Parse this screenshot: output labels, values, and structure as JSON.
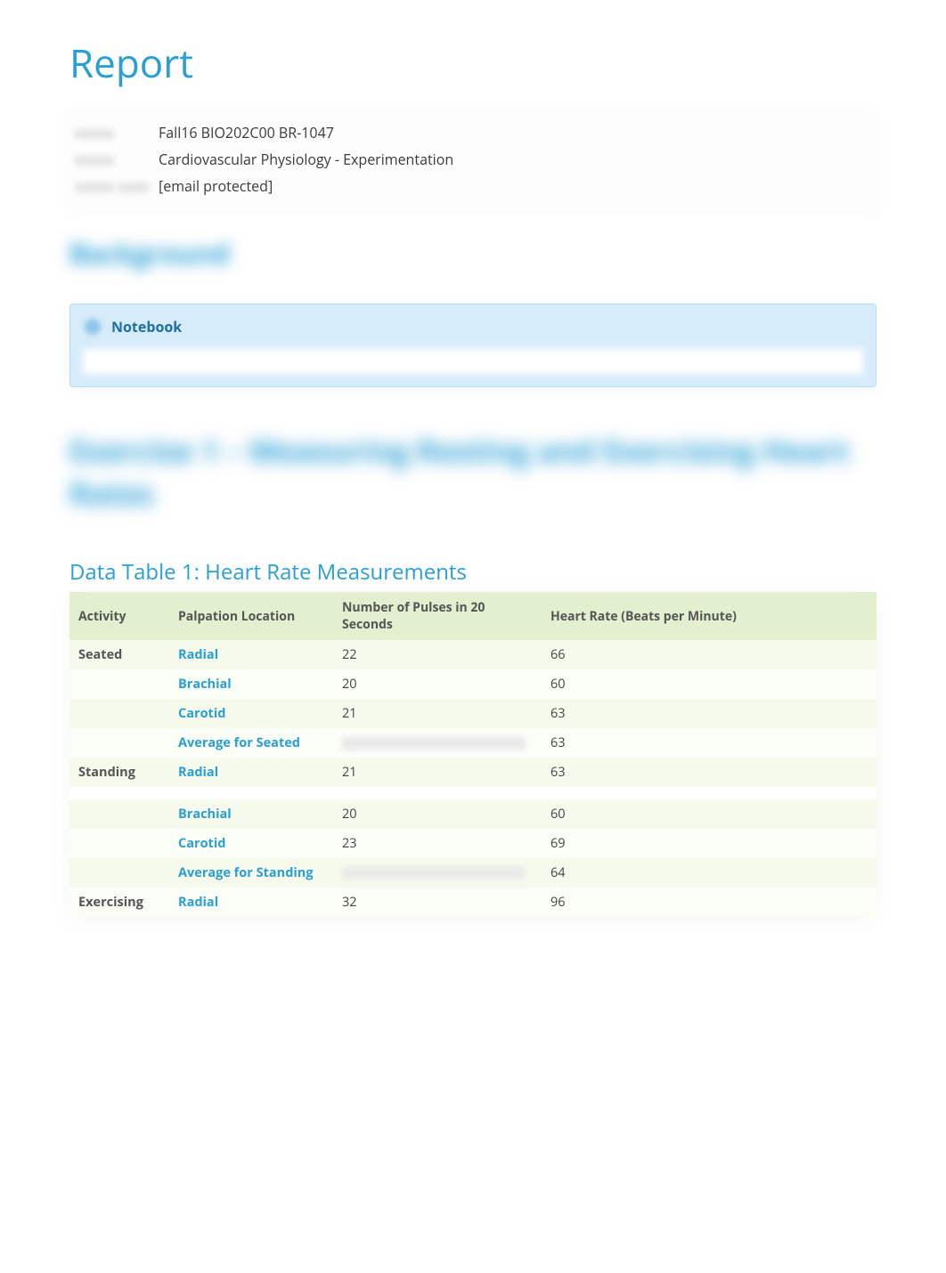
{
  "colors": {
    "accent": "#2a9fd6",
    "header_row_bg": "#e2f0cf",
    "row_odd_bg": "#f5faed",
    "row_even_bg": "#fbfdf7",
    "notebook_bg": "#d7ecfb",
    "notebook_border": "#b7dcf5",
    "text": "#444444"
  },
  "title": "Report",
  "meta": {
    "rows": [
      {
        "label": "xxxxx",
        "value": "Fall16 BIO202C00 BR-1047"
      },
      {
        "label": "xxxxx",
        "value": "Cardiovascular Physiology - Experimentation"
      },
      {
        "label": "xxxxx xxxx",
        "value": "[email protected]"
      }
    ]
  },
  "background_heading": "Background",
  "notebook": {
    "title": "Notebook"
  },
  "exercise_heading": "Exercise 1 – Measuring Resting and Exercising Heart\nRates",
  "table": {
    "title": "Data Table 1: Heart Rate Measurements",
    "columns": [
      "Activity",
      "Palpation Location",
      "Number of Pulses in 20 Seconds",
      "Heart Rate (Beats per Minute)"
    ],
    "rows": [
      {
        "activity": "Seated",
        "palp": "Radial",
        "pulses": "22",
        "rate": "66",
        "stripe": "odd"
      },
      {
        "activity": "",
        "palp": "Brachial",
        "pulses": "20",
        "rate": "60",
        "stripe": "even"
      },
      {
        "activity": "",
        "palp": "Carotid",
        "pulses": "21",
        "rate": "63",
        "stripe": "odd"
      },
      {
        "activity": "",
        "palp": "Average for Seated",
        "pulses": "",
        "rate": "63",
        "stripe": "even",
        "pulses_blurred": true
      },
      {
        "activity": "Standing",
        "palp": "Radial",
        "pulses": "21",
        "rate": "63",
        "stripe": "odd"
      },
      {
        "spacer": true
      },
      {
        "activity": "",
        "palp": "Brachial",
        "pulses": "20",
        "rate": "60",
        "stripe": "odd"
      },
      {
        "activity": "",
        "palp": "Carotid",
        "pulses": "23",
        "rate": "69",
        "stripe": "even"
      },
      {
        "activity": "",
        "palp": "Average for Standing",
        "pulses": "",
        "rate": "64",
        "stripe": "odd",
        "pulses_blurred": true
      },
      {
        "activity": "Exercising",
        "palp": "Radial",
        "pulses": "32",
        "rate": "96",
        "stripe": "even"
      }
    ]
  }
}
